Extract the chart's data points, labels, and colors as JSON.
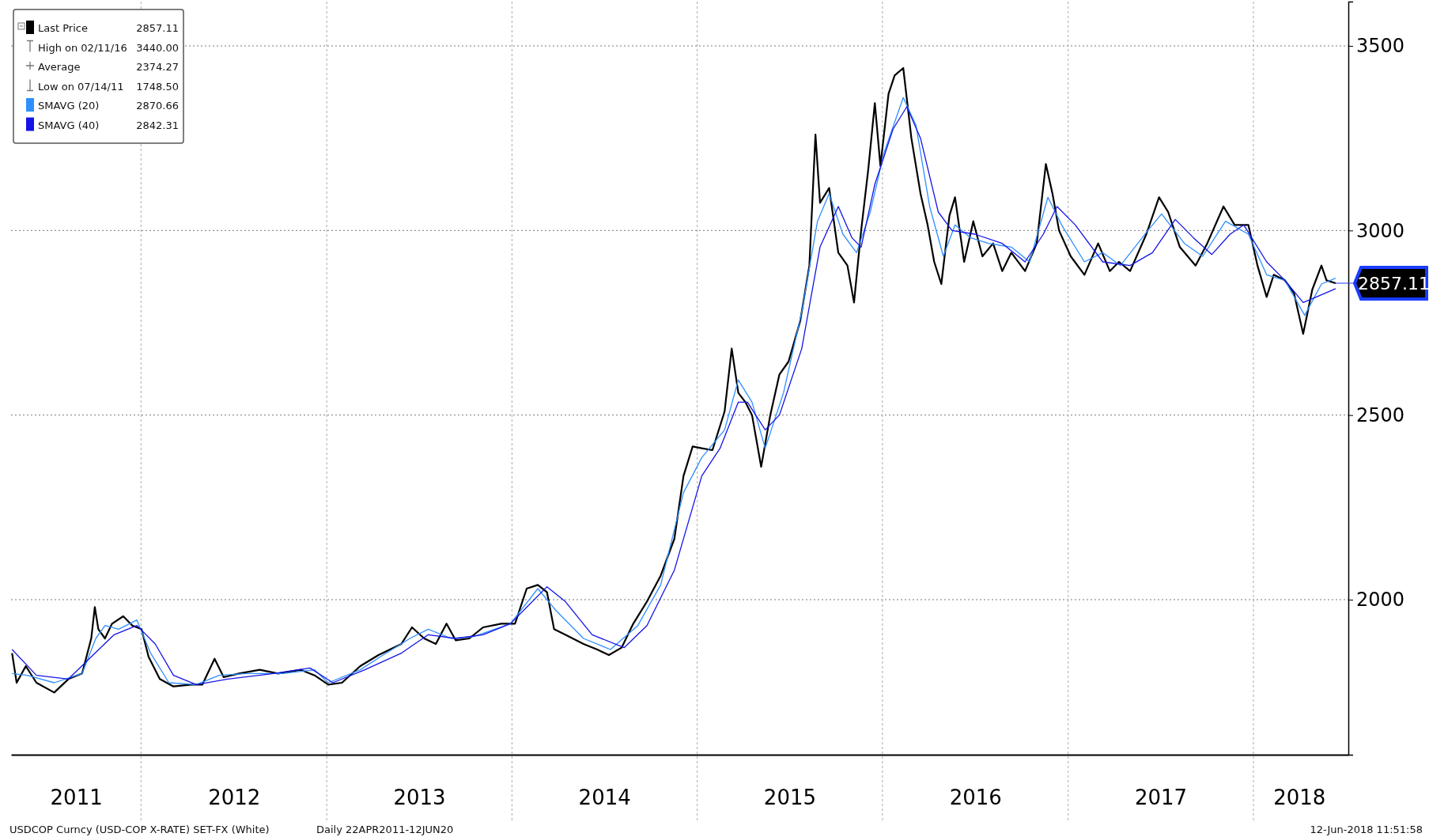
{
  "chart_data": {
    "type": "line",
    "xlim": [
      "2011-04-20",
      "2018-07-07"
    ],
    "ylim": [
      1580,
      3620
    ],
    "yticks": [
      2000,
      2500,
      3000,
      3500
    ],
    "xticks": [
      {
        "value": "2012-01-01",
        "label": null
      },
      {
        "value": "2013-01-01",
        "label": null
      },
      {
        "value": "2014-01-01",
        "label": null
      },
      {
        "value": "2015-01-01",
        "label": null
      },
      {
        "value": "2016-01-01",
        "label": null
      },
      {
        "value": "2017-01-01",
        "label": null
      },
      {
        "value": "2018-01-01",
        "label": null
      },
      {
        "value": "2011-08-26",
        "label": "2011"
      },
      {
        "value": "2012-07-02",
        "label": "2012"
      },
      {
        "value": "2013-07-02",
        "label": "2013"
      },
      {
        "value": "2014-07-02",
        "label": "2014"
      },
      {
        "value": "2015-07-02",
        "label": "2015"
      },
      {
        "value": "2016-07-02",
        "label": "2016"
      },
      {
        "value": "2017-07-02",
        "label": "2017"
      },
      {
        "value": "2018-04-01",
        "label": "2018"
      }
    ],
    "grid": true,
    "legend": "top left",
    "marker": "none",
    "line_style": "solid",
    "annotations": [
      "2857.11",
      "High on 02/11/16 3440.00",
      "Average 2374.27",
      "Low on 07/14/11 1748.50",
      "2870.66",
      "2842.31",
      {
        "text": "2857.11",
        "x": "2018-06-12",
        "y": 2857.11
      },
      "USDCOP Curncy (USD-COP X-RATE) SET-FX (White)",
      "Daily 22APR2011-12JUN20",
      "12-Jun-2018 11:51:58"
    ],
    "series": [
      {
        "name": "Last Price",
        "color": "#000000",
        "x": [
          "2011-04-22",
          "2011-05-01",
          "2011-05-19",
          "2011-06-09",
          "2011-07-14",
          "2011-08-11",
          "2011-09-07",
          "2011-09-25",
          "2011-10-02",
          "2011-10-09",
          "2011-10-22",
          "2011-11-05",
          "2011-11-27",
          "2011-12-15",
          "2012-01-02",
          "2012-01-16",
          "2012-02-07",
          "2012-03-05",
          "2012-04-10",
          "2012-05-01",
          "2012-05-25",
          "2012-06-12",
          "2012-07-12",
          "2012-08-22",
          "2012-09-27",
          "2012-11-11",
          "2012-12-08",
          "2013-01-04",
          "2013-01-31",
          "2013-03-08",
          "2013-04-13",
          "2013-05-28",
          "2013-06-18",
          "2013-07-12",
          "2013-08-04",
          "2013-08-25",
          "2013-09-12",
          "2013-10-09",
          "2013-11-05",
          "2013-12-11",
          "2014-01-07",
          "2014-01-30",
          "2014-02-21",
          "2014-03-11",
          "2014-03-25",
          "2014-04-16",
          "2014-05-22",
          "2014-06-18",
          "2014-07-11",
          "2014-08-05",
          "2014-08-28",
          "2014-09-24",
          "2014-10-21",
          "2014-11-17",
          "2014-12-05",
          "2014-12-23",
          "2015-01-10",
          "2015-01-31",
          "2015-02-24",
          "2015-03-10",
          "2015-03-23",
          "2015-04-06",
          "2015-04-19",
          "2015-05-07",
          "2015-05-25",
          "2015-06-12",
          "2015-06-30",
          "2015-07-23",
          "2015-08-10",
          "2015-08-22",
          "2015-08-31",
          "2015-09-18",
          "2015-10-06",
          "2015-10-24",
          "2015-11-06",
          "2015-11-20",
          "2015-12-04",
          "2015-12-17",
          "2015-12-28",
          "2016-01-13",
          "2016-01-25",
          "2016-02-11",
          "2016-02-27",
          "2016-03-16",
          "2016-03-30",
          "2016-04-12",
          "2016-04-26",
          "2016-05-12",
          "2016-05-23",
          "2016-06-10",
          "2016-06-28",
          "2016-07-16",
          "2016-08-06",
          "2016-08-24",
          "2016-09-11",
          "2016-10-08",
          "2016-10-31",
          "2016-11-18",
          "2016-12-01",
          "2016-12-14",
          "2017-01-06",
          "2017-02-02",
          "2017-03-01",
          "2017-03-24",
          "2017-04-11",
          "2017-05-03",
          "2017-06-04",
          "2017-06-29",
          "2017-07-17",
          "2017-08-09",
          "2017-09-09",
          "2017-10-02",
          "2017-11-03",
          "2017-11-25",
          "2017-12-22",
          "2018-01-09",
          "2018-01-27",
          "2018-02-10",
          "2018-03-04",
          "2018-03-22",
          "2018-04-09",
          "2018-04-27",
          "2018-05-15",
          "2018-05-25",
          "2018-06-12"
        ],
        "values": [
          1855,
          1775,
          1820,
          1775,
          1748.5,
          1785,
          1800,
          1895,
          1980,
          1920,
          1895,
          1935,
          1955,
          1930,
          1920,
          1845,
          1785,
          1765,
          1770,
          1770,
          1840,
          1790,
          1800,
          1810,
          1800,
          1810,
          1795,
          1770,
          1775,
          1820,
          1850,
          1880,
          1925,
          1895,
          1880,
          1935,
          1890,
          1895,
          1925,
          1935,
          1935,
          2030,
          2040,
          2020,
          1920,
          1905,
          1880,
          1865,
          1850,
          1870,
          1935,
          1995,
          2065,
          2165,
          2335,
          2415,
          2410,
          2405,
          2510,
          2680,
          2560,
          2535,
          2500,
          2360,
          2500,
          2610,
          2645,
          2755,
          2905,
          3260,
          3075,
          3115,
          2940,
          2905,
          2805,
          3000,
          3165,
          3345,
          3175,
          3370,
          3420,
          3440,
          3250,
          3100,
          3015,
          2915,
          2855,
          3040,
          3090,
          2915,
          3025,
          2930,
          2965,
          2890,
          2940,
          2890,
          2965,
          3180,
          3100,
          3000,
          2930,
          2880,
          2965,
          2890,
          2915,
          2890,
          2990,
          3090,
          3050,
          2955,
          2905,
          2965,
          3065,
          3015,
          3015,
          2905,
          2820,
          2880,
          2865,
          2830,
          2720,
          2840,
          2905,
          2865,
          2857.11
        ]
      },
      {
        "name": "SMAVG (20)",
        "color": "#2f8fff",
        "x": [
          "2011-04-22",
          "2011-05-22",
          "2011-07-14",
          "2011-09-07",
          "2011-10-04",
          "2011-10-22",
          "2011-11-18",
          "2011-12-24",
          "2012-01-20",
          "2012-02-25",
          "2012-04-19",
          "2012-06-03",
          "2012-07-27",
          "2012-10-06",
          "2012-12-08",
          "2013-01-04",
          "2013-03-08",
          "2013-04-22",
          "2013-06-14",
          "2013-07-20",
          "2013-09-03",
          "2013-10-18",
          "2013-12-29",
          "2014-02-21",
          "2014-03-29",
          "2014-05-22",
          "2014-07-14",
          "2014-09-06",
          "2014-10-21",
          "2014-12-05",
          "2015-01-10",
          "2015-02-24",
          "2015-03-23",
          "2015-04-19",
          "2015-05-15",
          "2015-06-20",
          "2015-07-26",
          "2015-08-26",
          "2015-09-18",
          "2015-10-15",
          "2015-11-11",
          "2015-12-08",
          "2016-01-04",
          "2016-02-11",
          "2016-03-07",
          "2016-04-03",
          "2016-04-30",
          "2016-05-23",
          "2016-06-23",
          "2016-07-28",
          "2016-09-11",
          "2016-10-17",
          "2016-11-22",
          "2016-12-19",
          "2017-02-02",
          "2017-03-10",
          "2017-04-14",
          "2017-06-07",
          "2017-07-04",
          "2017-08-18",
          "2017-09-23",
          "2017-11-07",
          "2017-12-22",
          "2018-01-27",
          "2018-03-04",
          "2018-04-12",
          "2018-05-15",
          "2018-06-12"
        ],
        "values": [
          1800,
          1795,
          1775,
          1800,
          1895,
          1930,
          1920,
          1945,
          1855,
          1775,
          1770,
          1795,
          1800,
          1800,
          1810,
          1775,
          1810,
          1850,
          1895,
          1920,
          1895,
          1900,
          1935,
          2030,
          1970,
          1895,
          1865,
          1930,
          2040,
          2290,
          2385,
          2460,
          2595,
          2535,
          2410,
          2560,
          2780,
          3025,
          3100,
          2990,
          2940,
          3050,
          3210,
          3360,
          3285,
          3065,
          2930,
          3015,
          2980,
          2965,
          2955,
          2915,
          3090,
          3015,
          2915,
          2940,
          2905,
          3000,
          3045,
          2965,
          2930,
          3025,
          2990,
          2880,
          2865,
          2770,
          2855,
          2870.66
        ]
      },
      {
        "name": "SMAVG (40)",
        "color": "#1414e6",
        "x": [
          "2011-04-22",
          "2011-06-09",
          "2011-08-11",
          "2011-09-25",
          "2011-11-09",
          "2011-12-24",
          "2012-01-29",
          "2012-03-05",
          "2012-04-19",
          "2012-06-20",
          "2012-09-18",
          "2012-11-29",
          "2013-01-13",
          "2013-03-17",
          "2013-05-28",
          "2013-07-20",
          "2013-09-12",
          "2013-11-05",
          "2013-12-29",
          "2014-03-11",
          "2014-04-16",
          "2014-06-08",
          "2014-08-10",
          "2014-09-24",
          "2014-11-17",
          "2015-01-10",
          "2015-02-15",
          "2015-03-23",
          "2015-04-10",
          "2015-05-15",
          "2015-06-12",
          "2015-07-26",
          "2015-08-31",
          "2015-10-06",
          "2015-11-02",
          "2015-11-20",
          "2015-12-17",
          "2016-01-22",
          "2016-02-18",
          "2016-03-16",
          "2016-04-20",
          "2016-05-17",
          "2016-07-01",
          "2016-08-24",
          "2016-10-08",
          "2016-11-13",
          "2016-12-10",
          "2017-01-15",
          "2017-03-10",
          "2017-05-03",
          "2017-06-16",
          "2017-07-31",
          "2017-09-05",
          "2017-10-11",
          "2017-11-16",
          "2017-12-13",
          "2018-01-27",
          "2018-03-04",
          "2018-04-09",
          "2018-05-05",
          "2018-06-12"
        ],
        "values": [
          1865,
          1795,
          1785,
          1845,
          1905,
          1930,
          1880,
          1795,
          1770,
          1785,
          1800,
          1815,
          1775,
          1810,
          1855,
          1905,
          1895,
          1905,
          1935,
          2035,
          1995,
          1905,
          1870,
          1930,
          2080,
          2335,
          2410,
          2535,
          2535,
          2460,
          2500,
          2680,
          2955,
          3065,
          2980,
          2955,
          3125,
          3275,
          3335,
          3250,
          3050,
          3000,
          2990,
          2965,
          2915,
          2990,
          3065,
          3015,
          2915,
          2905,
          2940,
          3030,
          2980,
          2935,
          2990,
          3015,
          2915,
          2865,
          2805,
          2820,
          2842.31
        ]
      }
    ]
  }
}
